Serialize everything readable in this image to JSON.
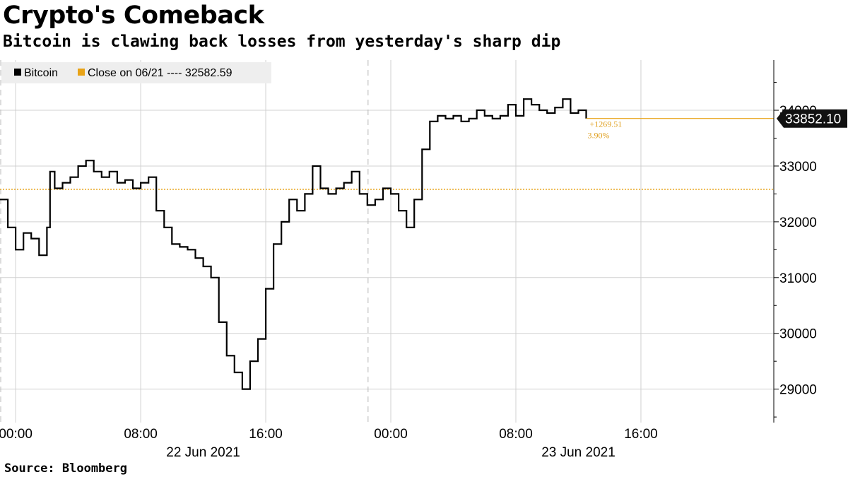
{
  "title": "Crypto's Comeback",
  "subtitle": "Bitcoin is clawing back losses from yesterday's sharp dip",
  "source": "Source:  Bloomberg",
  "legend": {
    "series_label": "Bitcoin",
    "close_label": "Close on 06/21 ---- 32582.59"
  },
  "last_value_label": "33852.10",
  "change_abs": "+1269.51",
  "change_pct": "3.90%",
  "colors": {
    "series": "#000000",
    "reference": "#e8a317",
    "grid": "#d0d0d0",
    "last_box": "#111111"
  },
  "chart_data": {
    "type": "line",
    "title": "Crypto's Comeback",
    "subtitle": "Bitcoin is clawing back losses from yesterday's sharp dip",
    "xlabel": "",
    "ylabel": "",
    "x_range_hours": [
      -1,
      48.5
    ],
    "ylim": [
      28400,
      34900
    ],
    "y_ticks": [
      29000,
      30000,
      31000,
      32000,
      33000,
      34000
    ],
    "x_ticks": [
      {
        "hour": 0,
        "label": "00:00"
      },
      {
        "hour": 8,
        "label": "08:00"
      },
      {
        "hour": 16,
        "label": "16:00"
      },
      {
        "hour": 24,
        "label": "00:00"
      },
      {
        "hour": 32,
        "label": "08:00"
      },
      {
        "hour": 40,
        "label": "16:00"
      }
    ],
    "date_labels": [
      {
        "hour": 12,
        "label": "22 Jun 2021"
      },
      {
        "hour": 36,
        "label": "23 Jun 2021"
      }
    ],
    "day_dividers_hours": [
      -1,
      22.5
    ],
    "grid": true,
    "legend_position": "top-left",
    "reference_line": {
      "name": "Close on 06/21",
      "value": 32582.59
    },
    "last_value": 33852.1,
    "series": [
      {
        "name": "Bitcoin",
        "x": [
          -1,
          -0.5,
          0,
          0.5,
          1,
          1.5,
          2,
          2.2,
          2.5,
          3,
          3.5,
          4,
          4.5,
          5,
          5.5,
          6,
          6.5,
          7,
          7.5,
          8,
          8.5,
          9,
          9.5,
          10,
          10.5,
          11,
          11.5,
          12,
          12.5,
          13,
          13.5,
          14,
          14.5,
          15,
          15.5,
          16,
          16.5,
          17,
          17.5,
          18,
          18.5,
          19,
          19.5,
          20,
          20.5,
          21,
          21.5,
          22,
          22.5,
          23,
          23.5,
          24,
          24.5,
          25,
          25.5,
          26,
          26.5,
          27,
          27.5,
          28,
          28.5,
          29,
          29.5,
          30,
          30.5,
          31,
          31.5,
          32,
          32.5,
          33,
          33.5,
          34,
          34.5,
          35,
          35.5,
          36,
          36.5
        ],
        "values": [
          32400,
          31900,
          31500,
          31800,
          31700,
          31400,
          31900,
          32900,
          32600,
          32700,
          32800,
          33000,
          33100,
          32900,
          32800,
          32900,
          32700,
          32750,
          32600,
          32700,
          32800,
          32200,
          31900,
          31600,
          31550,
          31500,
          31350,
          31200,
          31000,
          30200,
          29600,
          29300,
          29000,
          29500,
          29900,
          30800,
          31600,
          32000,
          32400,
          32200,
          32500,
          33000,
          32600,
          32500,
          32600,
          32700,
          32900,
          32500,
          32300,
          32400,
          32600,
          32500,
          32200,
          31900,
          32400,
          33300,
          33800,
          33900,
          33850,
          33900,
          33800,
          33850,
          34000,
          33900,
          33850,
          33900,
          34100,
          33900,
          34200,
          34100,
          34000,
          33950,
          34050,
          34200,
          33950,
          34000,
          33852.1
        ]
      }
    ]
  }
}
